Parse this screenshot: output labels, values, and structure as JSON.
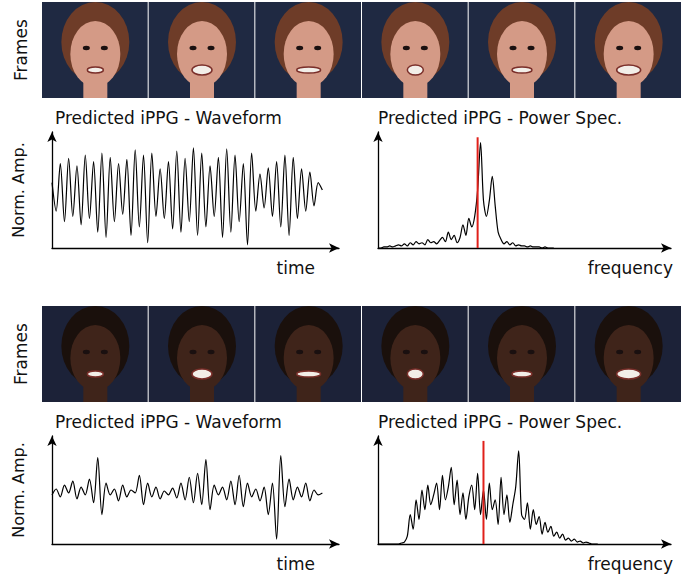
{
  "frame_rows": [
    {
      "label": "Frames"
    },
    {
      "label": "Frames"
    }
  ],
  "chart_data": [
    {
      "type": "line",
      "title": "Predicted iPPG - Waveform",
      "xlabel": "time",
      "ylabel": "Norm. Amp.",
      "tick_labels": false,
      "grid": false,
      "xlim": [
        0,
        69
      ],
      "ylim": [
        0,
        1.1
      ],
      "series": [
        {
          "type": "line",
          "color": "#000000",
          "x": [
            0,
            1,
            2,
            3,
            4,
            5,
            6,
            7,
            8,
            9,
            10,
            11,
            12,
            13,
            14,
            15,
            16,
            17,
            18,
            19,
            20,
            21,
            22,
            23,
            24,
            25,
            26,
            27,
            28,
            29,
            30,
            31,
            32,
            33,
            34,
            35,
            36,
            37,
            38,
            39,
            40,
            41,
            42,
            43,
            44,
            45,
            46,
            47,
            48,
            49,
            50,
            51,
            52,
            53,
            54,
            55,
            56,
            57,
            58,
            59,
            60,
            61,
            62,
            63,
            64,
            65
          ],
          "values": [
            0.62,
            0.35,
            0.8,
            0.25,
            0.85,
            0.3,
            0.78,
            0.22,
            0.88,
            0.28,
            0.82,
            0.15,
            0.9,
            0.1,
            0.86,
            0.25,
            0.8,
            0.32,
            0.84,
            0.12,
            0.93,
            0.2,
            0.88,
            0.05,
            0.9,
            0.3,
            0.75,
            0.28,
            0.82,
            0.18,
            0.92,
            0.15,
            0.85,
            0.25,
            0.95,
            0.12,
            0.9,
            0.2,
            0.78,
            0.3,
            0.86,
            0.1,
            0.94,
            0.15,
            0.88,
            0.25,
            0.8,
            0.03,
            0.9,
            0.35,
            0.7,
            0.38,
            0.76,
            0.3,
            0.82,
            0.2,
            0.88,
            0.12,
            0.86,
            0.28,
            0.75,
            0.35,
            0.72,
            0.4,
            0.62,
            0.55
          ]
        }
      ]
    },
    {
      "type": "line",
      "title": "Predicted iPPG - Power Spec.",
      "xlabel": "frequency",
      "tick_labels": false,
      "grid": false,
      "xlim": [
        0,
        100
      ],
      "ylim": [
        0,
        1.1
      ],
      "series": [
        {
          "type": "line",
          "color": "#000000",
          "x": [
            0,
            1,
            2,
            3,
            4,
            5,
            6,
            7,
            8,
            9,
            10,
            11,
            12,
            13,
            14,
            15,
            16,
            17,
            18,
            19,
            20,
            21,
            22,
            23,
            24,
            25,
            26,
            27,
            28,
            29,
            30,
            31,
            32,
            33,
            34,
            35,
            36,
            37,
            38,
            39,
            40,
            41,
            42,
            43,
            44,
            45,
            46,
            47,
            48,
            49,
            50,
            51,
            52,
            53,
            54,
            55,
            56,
            57,
            58,
            59,
            60
          ],
          "values": [
            0.0,
            0.0,
            0.01,
            0.01,
            0.02,
            0.01,
            0.02,
            0.03,
            0.02,
            0.04,
            0.02,
            0.05,
            0.03,
            0.06,
            0.04,
            0.05,
            0.03,
            0.08,
            0.05,
            0.06,
            0.04,
            0.07,
            0.1,
            0.06,
            0.15,
            0.08,
            0.12,
            0.05,
            0.1,
            0.22,
            0.12,
            0.28,
            0.2,
            0.3,
            0.55,
            1.0,
            0.45,
            0.3,
            0.45,
            0.68,
            0.4,
            0.15,
            0.08,
            0.04,
            0.06,
            0.03,
            0.05,
            0.02,
            0.03,
            0.02,
            0.02,
            0.01,
            0.02,
            0.01,
            0.01,
            0.01,
            0.0,
            0.01,
            0.0,
            0.0,
            0.0
          ]
        },
        {
          "type": "line",
          "color": "#e0201a",
          "x": [
            34,
            34
          ],
          "values": [
            0,
            1.05
          ]
        }
      ]
    },
    {
      "type": "line",
      "title": "Predicted iPPG - Waveform",
      "xlabel": "time",
      "ylabel": "Norm. Amp.",
      "tick_labels": false,
      "grid": false,
      "xlim": [
        0,
        69
      ],
      "ylim": [
        0,
        1.1
      ],
      "series": [
        {
          "type": "line",
          "color": "#000000",
          "x": [
            0,
            1,
            2,
            3,
            4,
            5,
            6,
            7,
            8,
            9,
            10,
            11,
            12,
            13,
            14,
            15,
            16,
            17,
            18,
            19,
            20,
            21,
            22,
            23,
            24,
            25,
            26,
            27,
            28,
            29,
            30,
            31,
            32,
            33,
            34,
            35,
            36,
            37,
            38,
            39,
            40,
            41,
            42,
            43,
            44,
            45,
            46,
            47,
            48,
            49,
            50,
            51,
            52,
            53,
            54,
            55,
            56,
            57,
            58,
            59,
            60,
            61,
            62,
            63,
            64,
            65
          ],
          "values": [
            0.5,
            0.56,
            0.48,
            0.6,
            0.52,
            0.64,
            0.46,
            0.58,
            0.5,
            0.66,
            0.42,
            0.88,
            0.3,
            0.62,
            0.5,
            0.56,
            0.44,
            0.6,
            0.48,
            0.55,
            0.52,
            0.7,
            0.4,
            0.62,
            0.48,
            0.58,
            0.46,
            0.54,
            0.5,
            0.57,
            0.47,
            0.62,
            0.45,
            0.68,
            0.42,
            0.72,
            0.4,
            0.86,
            0.35,
            0.6,
            0.5,
            0.58,
            0.45,
            0.64,
            0.4,
            0.7,
            0.38,
            0.62,
            0.48,
            0.56,
            0.44,
            0.58,
            0.3,
            0.62,
            0.05,
            0.9,
            0.38,
            0.66,
            0.45,
            0.58,
            0.48,
            0.62,
            0.44,
            0.55,
            0.5,
            0.52
          ]
        }
      ]
    },
    {
      "type": "line",
      "title": "Predicted iPPG - Power Spec.",
      "xlabel": "frequency",
      "tick_labels": false,
      "grid": false,
      "xlim": [
        0,
        100
      ],
      "ylim": [
        0,
        1.1
      ],
      "series": [
        {
          "type": "line",
          "color": "#000000",
          "x": [
            0,
            1,
            2,
            3,
            4,
            5,
            6,
            7,
            8,
            9,
            10,
            11,
            12,
            13,
            14,
            15,
            16,
            17,
            18,
            19,
            20,
            21,
            22,
            23,
            24,
            25,
            26,
            27,
            28,
            29,
            30,
            31,
            32,
            33,
            34,
            35,
            36,
            37,
            38,
            39,
            40,
            41,
            42,
            43,
            44,
            45,
            46,
            47,
            48,
            49,
            50,
            51,
            52,
            53,
            54,
            55,
            56,
            57,
            58,
            59,
            60,
            61,
            62,
            63,
            64,
            65,
            66,
            67,
            68,
            69,
            70,
            71,
            72,
            73,
            74,
            75
          ],
          "values": [
            0,
            0,
            0,
            0,
            0,
            0,
            0,
            0,
            0.01,
            0.02,
            0.08,
            0.3,
            0.15,
            0.45,
            0.25,
            0.55,
            0.35,
            0.6,
            0.4,
            0.5,
            0.62,
            0.35,
            0.7,
            0.45,
            0.58,
            0.78,
            0.4,
            0.65,
            0.3,
            0.52,
            0.25,
            0.48,
            0.6,
            0.35,
            0.72,
            0.3,
            0.55,
            0.25,
            0.62,
            0.35,
            0.45,
            0.2,
            0.68,
            0.3,
            0.5,
            0.22,
            0.4,
            0.58,
            0.95,
            0.3,
            0.25,
            0.42,
            0.15,
            0.35,
            0.2,
            0.28,
            0.1,
            0.22,
            0.12,
            0.18,
            0.08,
            0.12,
            0.06,
            0.1,
            0.04,
            0.06,
            0.03,
            0.05,
            0.02,
            0.03,
            0.01,
            0.02,
            0.01,
            0.0,
            0.0,
            0.0
          ]
        },
        {
          "type": "line",
          "color": "#e0201a",
          "x": [
            36,
            36
          ],
          "values": [
            0,
            1.05
          ]
        }
      ]
    }
  ]
}
